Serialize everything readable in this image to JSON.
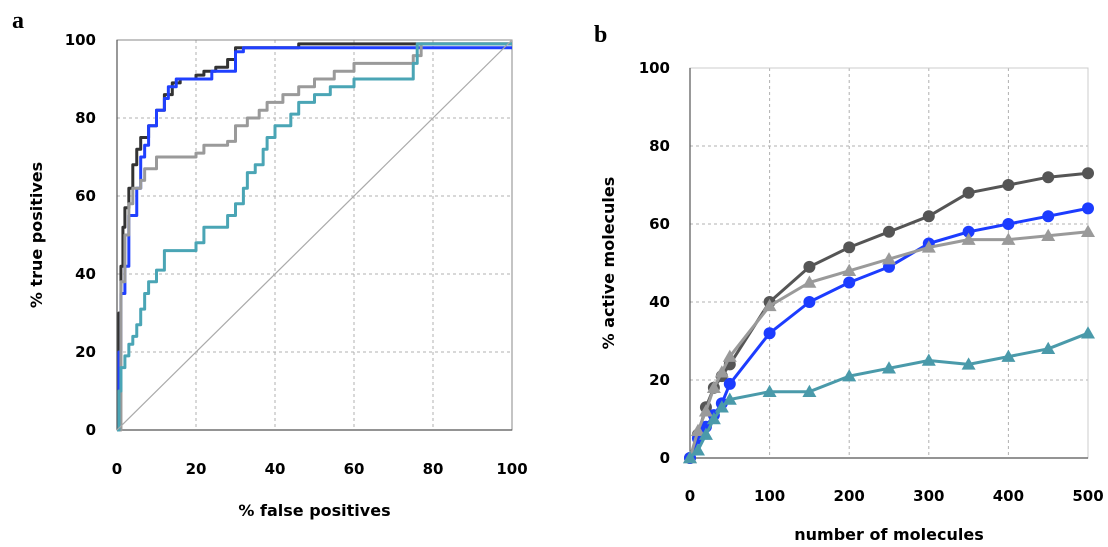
{
  "panels": [
    {
      "letter": "a"
    },
    {
      "letter": "b"
    }
  ],
  "chart_data": [
    {
      "type": "line",
      "panel": "a",
      "xlabel": "% false positives",
      "ylabel": "% true positives",
      "xlim": [
        0,
        100
      ],
      "ylim": [
        0,
        100
      ],
      "x_ticks": [
        "0",
        "20",
        "40",
        "60",
        "80",
        "100"
      ],
      "y_ticks": [
        "0",
        "20",
        "40",
        "60",
        "80",
        "100"
      ],
      "grid": true,
      "series": [
        {
          "color": "#333333",
          "step": true,
          "points": [
            [
              0,
              0
            ],
            [
              0.5,
              30
            ],
            [
              1,
              42
            ],
            [
              1.5,
              52
            ],
            [
              2,
              57
            ],
            [
              3,
              62
            ],
            [
              4,
              68
            ],
            [
              5,
              72
            ],
            [
              6,
              75
            ],
            [
              8,
              78
            ],
            [
              10,
              82
            ],
            [
              12,
              86
            ],
            [
              14,
              89
            ],
            [
              16,
              90
            ],
            [
              20,
              91
            ],
            [
              22,
              92
            ],
            [
              25,
              93
            ],
            [
              28,
              95
            ],
            [
              30,
              98
            ],
            [
              45,
              98
            ],
            [
              46,
              99
            ],
            [
              100,
              99
            ]
          ]
        },
        {
          "color": "#2040ff",
          "step": true,
          "points": [
            [
              0,
              0
            ],
            [
              0.5,
              20
            ],
            [
              1,
              35
            ],
            [
              2,
              42
            ],
            [
              3,
              55
            ],
            [
              5,
              62
            ],
            [
              6,
              70
            ],
            [
              7,
              73
            ],
            [
              8,
              78
            ],
            [
              10,
              82
            ],
            [
              12,
              85
            ],
            [
              13,
              88
            ],
            [
              15,
              90
            ],
            [
              20,
              90
            ],
            [
              24,
              92
            ],
            [
              28,
              92
            ],
            [
              30,
              97
            ],
            [
              32,
              98
            ],
            [
              100,
              98
            ]
          ]
        },
        {
          "color": "#9a9a9a",
          "step": true,
          "points": [
            [
              0,
              0
            ],
            [
              1,
              38
            ],
            [
              2,
              50
            ],
            [
              3,
              58
            ],
            [
              4,
              62
            ],
            [
              6,
              64
            ],
            [
              7,
              67
            ],
            [
              10,
              70
            ],
            [
              20,
              71
            ],
            [
              22,
              73
            ],
            [
              28,
              74
            ],
            [
              30,
              78
            ],
            [
              33,
              80
            ],
            [
              36,
              82
            ],
            [
              38,
              84
            ],
            [
              42,
              86
            ],
            [
              46,
              88
            ],
            [
              50,
              90
            ],
            [
              55,
              92
            ],
            [
              60,
              94
            ],
            [
              74,
              94
            ],
            [
              75,
              96
            ],
            [
              77,
              99
            ],
            [
              100,
              99
            ]
          ]
        },
        {
          "color": "#4aa5b5",
          "step": true,
          "points": [
            [
              0,
              0
            ],
            [
              0.5,
              10
            ],
            [
              1,
              16
            ],
            [
              2,
              19
            ],
            [
              3,
              22
            ],
            [
              4,
              24
            ],
            [
              5,
              27
            ],
            [
              6,
              31
            ],
            [
              7,
              35
            ],
            [
              8,
              38
            ],
            [
              10,
              41
            ],
            [
              12,
              46
            ],
            [
              20,
              48
            ],
            [
              22,
              52
            ],
            [
              28,
              55
            ],
            [
              30,
              58
            ],
            [
              32,
              62
            ],
            [
              33,
              66
            ],
            [
              35,
              68
            ],
            [
              37,
              72
            ],
            [
              38,
              75
            ],
            [
              40,
              78
            ],
            [
              44,
              81
            ],
            [
              46,
              84
            ],
            [
              50,
              86
            ],
            [
              54,
              88
            ],
            [
              60,
              90
            ],
            [
              74,
              90
            ],
            [
              75,
              94
            ],
            [
              76,
              99
            ],
            [
              100,
              99
            ]
          ]
        },
        {
          "color": "#aaaaaa",
          "step": false,
          "points": [
            [
              0,
              0
            ],
            [
              100,
              100
            ]
          ]
        }
      ]
    },
    {
      "type": "line",
      "panel": "b",
      "xlabel": "number of molecules",
      "ylabel": "% active molecules",
      "xlim": [
        0,
        500
      ],
      "ylim": [
        0,
        100
      ],
      "x_ticks": [
        "0",
        "100",
        "200",
        "300",
        "400",
        "500"
      ],
      "y_ticks": [
        "0",
        "20",
        "40",
        "60",
        "80",
        "100"
      ],
      "grid": true,
      "series": [
        {
          "color": "#555555",
          "marker": "circle",
          "x": [
            0,
            10,
            20,
            30,
            40,
            50,
            100,
            150,
            200,
            250,
            300,
            350,
            400,
            450,
            500
          ],
          "y": [
            0,
            6,
            13,
            18,
            21,
            24,
            40,
            49,
            54,
            58,
            62,
            68,
            70,
            72,
            73
          ]
        },
        {
          "color": "#1c3cff",
          "marker": "circle",
          "x": [
            0,
            10,
            20,
            30,
            40,
            50,
            100,
            150,
            200,
            250,
            300,
            350,
            400,
            450,
            500
          ],
          "y": [
            0,
            5,
            8,
            11,
            14,
            19,
            32,
            40,
            45,
            49,
            55,
            58,
            60,
            62,
            64
          ]
        },
        {
          "color": "#9a9a9a",
          "marker": "triangle",
          "x": [
            0,
            10,
            20,
            30,
            40,
            50,
            100,
            150,
            200,
            250,
            300,
            350,
            400,
            450,
            500
          ],
          "y": [
            0,
            7,
            12,
            18,
            22,
            26,
            39,
            45,
            48,
            51,
            54,
            56,
            56,
            57,
            58
          ]
        },
        {
          "color": "#4a9aaa",
          "marker": "triangle",
          "x": [
            0,
            10,
            20,
            30,
            40,
            50,
            100,
            150,
            200,
            250,
            300,
            350,
            400,
            450,
            500
          ],
          "y": [
            0,
            2,
            6,
            10,
            13,
            15,
            17,
            17,
            21,
            23,
            25,
            24,
            26,
            28,
            32
          ]
        }
      ]
    }
  ]
}
